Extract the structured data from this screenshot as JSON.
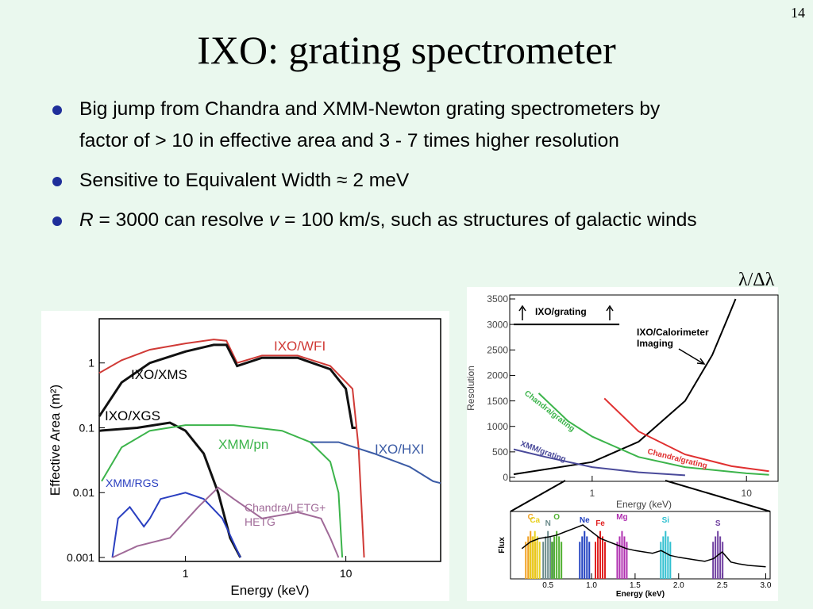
{
  "page_number": "14",
  "title": "IXO: grating spectrometer",
  "bullets": [
    [
      {
        "text": "Big jump from Chandra and XMM-Newton grating spectrometers by factor of > 10 in effective area and 3 - 7 times higher resolution",
        "italic": false
      }
    ],
    [
      {
        "text": "Sensitive to Equivalent Width ≈ 2 meV",
        "italic": false
      }
    ],
    [
      {
        "text": "R",
        "italic": true
      },
      {
        "text": " = 3000 can resolve ",
        "italic": false
      },
      {
        "text": "v",
        "italic": true
      },
      {
        "text": " = 100 km/s, such as structures of galactic winds",
        "italic": false
      }
    ]
  ],
  "annotation": "λ/Δλ",
  "chart_data": [
    {
      "type": "line",
      "xlabel": "Energy (keV)",
      "ylabel": "Effective Area (m²)",
      "xscale": "log",
      "yscale": "log",
      "xlim": [
        0.29,
        39
      ],
      "ylim": [
        0.00087,
        4.8
      ],
      "xticks": [
        1,
        10
      ],
      "yticks": [
        0.001,
        0.01,
        0.1,
        1
      ],
      "series": [
        {
          "name": "IXO/WFI",
          "color": "#d03a36",
          "x": [
            0.29,
            0.4,
            0.6,
            1.0,
            1.5,
            1.8,
            2.1,
            3,
            5,
            8,
            11,
            12,
            13
          ],
          "values": [
            0.7,
            1.1,
            1.6,
            2.0,
            2.3,
            2.2,
            1.0,
            1.3,
            1.3,
            0.9,
            0.4,
            0.05,
            0.001
          ]
        },
        {
          "name": "IXO/XMS",
          "color": "#111111",
          "x": [
            0.29,
            0.4,
            0.6,
            1.0,
            1.5,
            1.8,
            2.1,
            3,
            5,
            8,
            10,
            11,
            11.5
          ],
          "values": [
            0.15,
            0.5,
            1.0,
            1.5,
            1.9,
            1.9,
            0.9,
            1.2,
            1.2,
            0.8,
            0.4,
            0.1,
            0.1
          ]
        },
        {
          "name": "IXO/XGS",
          "color": "#111111",
          "x": [
            0.29,
            0.5,
            0.8,
            1.0,
            1.3,
            1.6,
            1.9,
            2.2
          ],
          "values": [
            0.09,
            0.1,
            0.12,
            0.09,
            0.04,
            0.01,
            0.002,
            0.001
          ]
        },
        {
          "name": "XMM/pn",
          "color": "#3cb44b",
          "x": [
            0.3,
            0.4,
            0.6,
            1,
            2,
            4,
            6,
            8,
            9,
            9.5
          ],
          "values": [
            0.015,
            0.05,
            0.09,
            0.11,
            0.11,
            0.09,
            0.06,
            0.03,
            0.01,
            0.001
          ]
        },
        {
          "name": "IXO/HXI",
          "color": "#3b5ba5",
          "x": [
            6,
            9,
            15,
            25,
            35,
            39
          ],
          "values": [
            0.06,
            0.06,
            0.04,
            0.025,
            0.015,
            0.014
          ]
        },
        {
          "name": "XMM/RGS",
          "color": "#2a3fc0",
          "x": [
            0.35,
            0.38,
            0.45,
            0.55,
            0.6,
            0.7,
            1.0,
            1.3,
            1.7,
            2.2
          ],
          "values": [
            0.001,
            0.004,
            0.006,
            0.003,
            0.004,
            0.008,
            0.01,
            0.008,
            0.004,
            0.001
          ]
        },
        {
          "name": "Chandra/LETG+\nHETG",
          "color": "#a06a98",
          "x": [
            0.35,
            0.5,
            0.8,
            1.2,
            1.6,
            2.0,
            3,
            5,
            7,
            8,
            9
          ],
          "values": [
            0.001,
            0.0015,
            0.002,
            0.006,
            0.012,
            0.008,
            0.004,
            0.005,
            0.004,
            0.002,
            0.001
          ]
        }
      ]
    },
    {
      "type": "line",
      "xlabel": "Energy (keV)",
      "ylabel": "Resolution",
      "xscale": "log",
      "xlim": [
        0.31,
        15.1
      ],
      "ylim": [
        0,
        3500
      ],
      "xticks": [
        1,
        10
      ],
      "yticks": [
        0,
        500,
        1000,
        1500,
        2000,
        2500,
        3000,
        3500
      ],
      "series": [
        {
          "name": "IXO/grating",
          "color": "#000000",
          "x": [
            0.31,
            1.5
          ],
          "values": [
            3000,
            3000
          ]
        },
        {
          "name": "IXO/Calorimeter\nImaging",
          "color": "#000000",
          "x": [
            0.31,
            1,
            2,
            4,
            6,
            7.5,
            8.5
          ],
          "values": [
            60,
            300,
            700,
            1500,
            2400,
            3100,
            3500
          ]
        },
        {
          "name": "Chandra/grating",
          "color": "#3cb44b",
          "x": [
            0.45,
            0.7,
            1,
            2,
            4,
            10,
            14
          ],
          "values": [
            1650,
            1100,
            800,
            400,
            200,
            80,
            50
          ]
        },
        {
          "name": "Chandra/grating",
          "color": "#e03030",
          "x": [
            1.2,
            2,
            4,
            8,
            14
          ],
          "values": [
            1550,
            900,
            450,
            220,
            120
          ]
        },
        {
          "name": "XMM/grating",
          "color": "#4a4a9a",
          "x": [
            0.31,
            0.5,
            1,
            2,
            4
          ],
          "values": [
            550,
            400,
            200,
            100,
            40
          ]
        }
      ]
    },
    {
      "type": "line",
      "xlabel": "Energy (keV)",
      "ylabel": "Flux",
      "xlim": [
        0.07,
        3.05
      ],
      "ylim": [
        0,
        1
      ],
      "xticks": [
        0.5,
        {
          "value": 1,
          "label": "1.0"
        },
        1.5,
        {
          "value": 2,
          "label": "2.0"
        },
        2.5,
        {
          "value": 3,
          "label": "3.0"
        }
      ],
      "x": [
        0.2,
        0.3,
        0.4,
        0.5,
        0.6,
        0.7,
        0.8,
        0.9,
        1.0,
        1.1,
        1.2,
        1.3,
        1.4,
        1.5,
        1.6,
        1.7,
        1.8,
        1.9,
        2.0,
        2.1,
        2.2,
        2.3,
        2.4,
        2.5,
        2.6,
        2.7,
        2.8,
        2.9,
        3.0
      ],
      "values": [
        0.45,
        0.55,
        0.6,
        0.62,
        0.65,
        0.7,
        0.75,
        0.8,
        0.7,
        0.6,
        0.55,
        0.5,
        0.45,
        0.42,
        0.4,
        0.38,
        0.42,
        0.35,
        0.32,
        0.3,
        0.28,
        0.26,
        0.3,
        0.4,
        0.25,
        0.22,
        0.2,
        0.19,
        0.18
      ],
      "color": "#000000",
      "elements": [
        {
          "name": "C",
          "color": "#f0a020",
          "energy": 0.3
        },
        {
          "name": "Ca",
          "color": "#e8d020",
          "energy": 0.35
        },
        {
          "name": "N",
          "color": "#6a8a8a",
          "energy": 0.5
        },
        {
          "name": "O",
          "color": "#50b030",
          "energy": 0.6
        },
        {
          "name": "Ne",
          "color": "#2040c0",
          "energy": 0.92
        },
        {
          "name": "Fe",
          "color": "#e02020",
          "energy": 1.1
        },
        {
          "name": "Mg",
          "color": "#b030b0",
          "energy": 1.35
        },
        {
          "name": "Si",
          "color": "#30c0d0",
          "energy": 1.85
        },
        {
          "name": "S",
          "color": "#7040a0",
          "energy": 2.45
        }
      ]
    }
  ]
}
